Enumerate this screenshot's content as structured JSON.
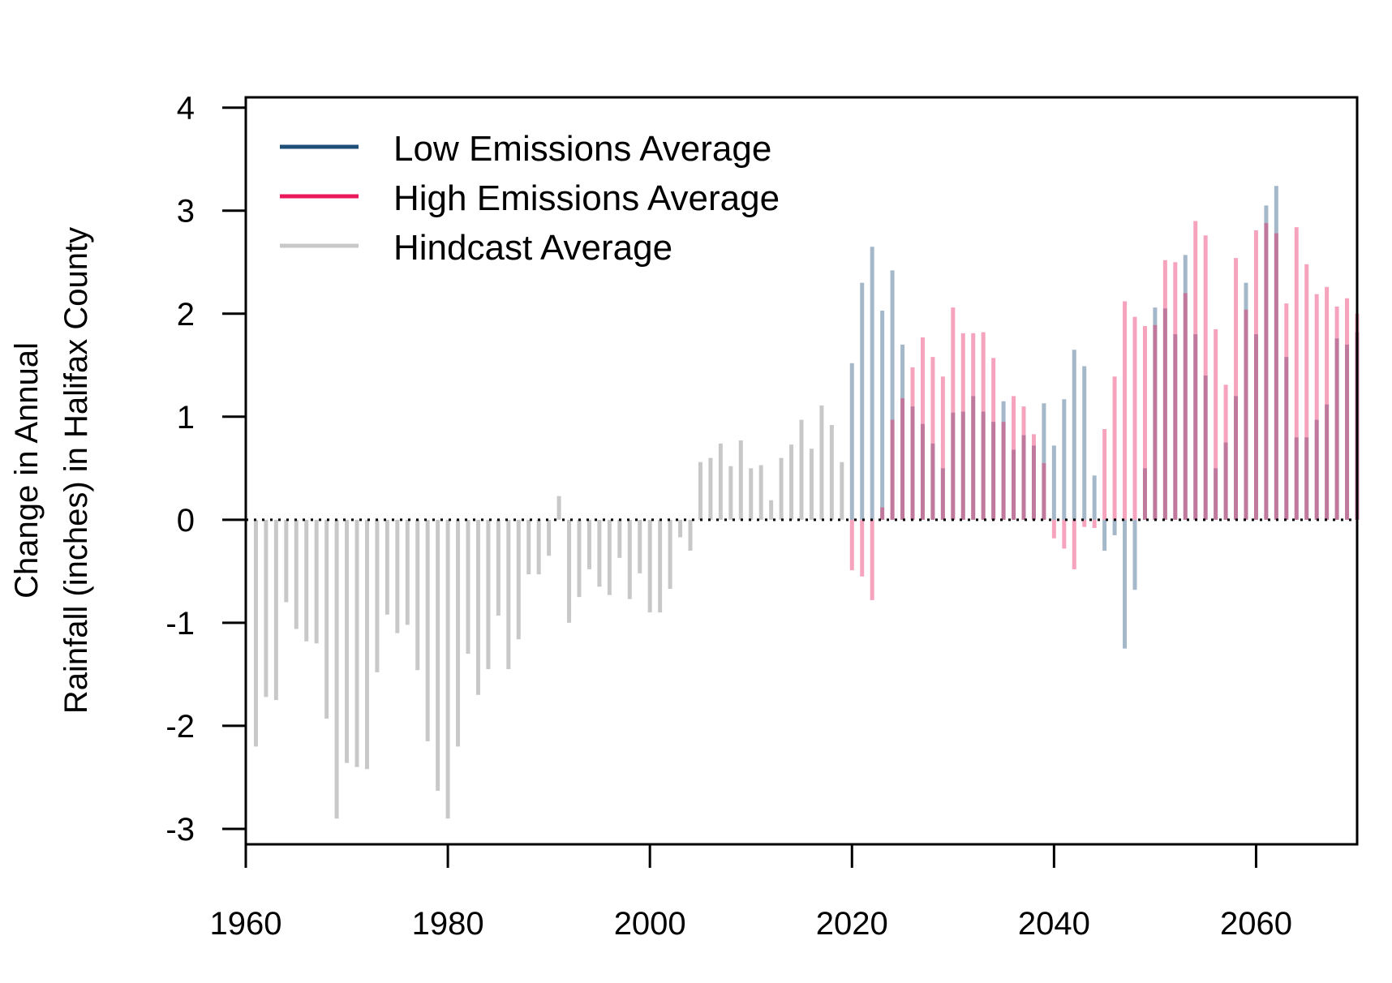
{
  "chart_data": {
    "type": "bar",
    "title": "",
    "xlabel": "",
    "ylabel_lines": [
      "Change in Annual",
      "Rainfall (inches) in Halifax County"
    ],
    "xlim": [
      1960,
      2070
    ],
    "ylim": [
      -3.15,
      4.1
    ],
    "x_ticks": [
      1960,
      1980,
      2000,
      2020,
      2040,
      2060
    ],
    "y_ticks": [
      -3,
      -2,
      -1,
      0,
      1,
      2,
      3,
      4
    ],
    "grid": false,
    "reference_line": 0,
    "legend_position": "top-left",
    "series": [
      {
        "name": "Hindcast Average",
        "color": "#c8c8c8",
        "x": [
          1961,
          1962,
          1963,
          1964,
          1965,
          1966,
          1967,
          1968,
          1969,
          1970,
          1971,
          1972,
          1973,
          1974,
          1975,
          1976,
          1977,
          1978,
          1979,
          1980,
          1981,
          1982,
          1983,
          1984,
          1985,
          1986,
          1987,
          1988,
          1989,
          1990,
          1991,
          1992,
          1993,
          1994,
          1995,
          1996,
          1997,
          1998,
          1999,
          2000,
          2001,
          2002,
          2003,
          2004,
          2005,
          2006,
          2007,
          2008,
          2009,
          2010,
          2011,
          2012,
          2013,
          2014,
          2015,
          2016,
          2017,
          2018,
          2019
        ],
        "values": [
          -2.2,
          -1.72,
          -1.75,
          -0.8,
          -1.06,
          -1.18,
          -1.2,
          -1.93,
          -2.9,
          -2.36,
          -2.4,
          -2.42,
          -1.48,
          -0.92,
          -1.1,
          -1.02,
          -1.46,
          -2.15,
          -2.63,
          -2.9,
          -2.2,
          -1.3,
          -1.7,
          -1.45,
          -0.93,
          -1.45,
          -1.16,
          -0.53,
          -0.53,
          -0.35,
          0.23,
          -1.0,
          -0.75,
          -0.48,
          -0.65,
          -0.73,
          -0.37,
          -0.77,
          -0.52,
          -0.9,
          -0.9,
          -0.67,
          -0.17,
          -0.3,
          0.56,
          0.6,
          0.74,
          0.52,
          0.77,
          0.5,
          0.53,
          0.19,
          0.6,
          0.73,
          0.97,
          0.69,
          1.11,
          0.92,
          0.56
        ]
      },
      {
        "name": "Low Emissions Average",
        "color": "#1f4e79",
        "x": [
          2020,
          2021,
          2022,
          2023,
          2024,
          2025,
          2026,
          2027,
          2028,
          2029,
          2030,
          2031,
          2032,
          2033,
          2034,
          2035,
          2036,
          2037,
          2038,
          2039,
          2040,
          2041,
          2042,
          2043,
          2044,
          2045,
          2046,
          2047,
          2048,
          2049,
          2050,
          2051,
          2052,
          2053,
          2054,
          2055,
          2056,
          2057,
          2058,
          2059,
          2060,
          2061,
          2062,
          2063,
          2064,
          2065,
          2066,
          2067,
          2068,
          2069,
          2070
        ],
        "values": [
          1.52,
          2.3,
          2.65,
          2.03,
          2.42,
          1.7,
          1.1,
          0.93,
          0.74,
          0.5,
          1.04,
          1.05,
          1.2,
          1.05,
          0.95,
          1.15,
          0.68,
          0.82,
          0.72,
          1.13,
          0.72,
          1.17,
          1.65,
          1.49,
          0.43,
          -0.3,
          -0.15,
          -1.25,
          -0.68,
          0.5,
          2.06,
          2.05,
          1.8,
          2.57,
          1.8,
          1.4,
          0.5,
          0.75,
          1.2,
          2.3,
          1.8,
          3.05,
          3.24,
          1.58,
          0.8,
          0.8,
          0.97,
          1.12,
          1.76,
          1.7,
          1.82
        ]
      },
      {
        "name": "High Emissions Average",
        "color": "#e8185a",
        "x": [
          2020,
          2021,
          2022,
          2023,
          2024,
          2025,
          2026,
          2027,
          2028,
          2029,
          2030,
          2031,
          2032,
          2033,
          2034,
          2035,
          2036,
          2037,
          2038,
          2039,
          2040,
          2041,
          2042,
          2043,
          2044,
          2045,
          2046,
          2047,
          2048,
          2049,
          2050,
          2051,
          2052,
          2053,
          2054,
          2055,
          2056,
          2057,
          2058,
          2059,
          2060,
          2061,
          2062,
          2063,
          2064,
          2065,
          2066,
          2067,
          2068,
          2069,
          2070
        ],
        "values": [
          -0.49,
          -0.55,
          -0.78,
          0.12,
          0.97,
          1.18,
          1.48,
          1.77,
          1.58,
          1.39,
          2.06,
          1.81,
          1.81,
          1.82,
          1.57,
          0.95,
          1.2,
          1.1,
          0.83,
          0.55,
          -0.18,
          -0.28,
          -0.48,
          -0.07,
          -0.08,
          0.88,
          1.39,
          2.12,
          1.97,
          1.88,
          1.89,
          2.52,
          2.5,
          2.2,
          2.9,
          2.76,
          1.85,
          1.31,
          2.54,
          2.04,
          2.81,
          2.88,
          2.78,
          2.1,
          2.84,
          2.48,
          2.19,
          2.26,
          2.07,
          2.15,
          2.0
        ]
      }
    ]
  }
}
